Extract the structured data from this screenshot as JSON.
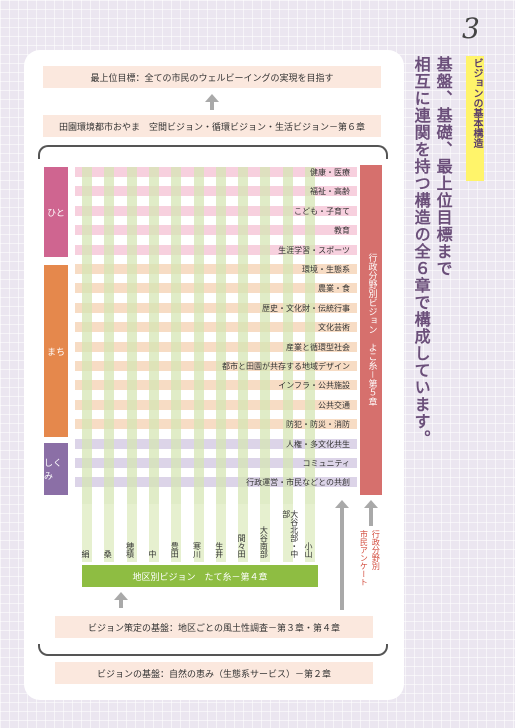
{
  "side": {
    "number": "3",
    "tag": "ビジョンの基本構造",
    "heading_lines": [
      "基盤、基礎、最上位目標まで",
      "相互に連関を持つ構造の全６章で構成しています。"
    ]
  },
  "top_goal": "最上位目標：全ての市民のウェルビーイングの実現を目指す",
  "chapter6": "田園環境都市おやま　空間ビジョン・循環ビジョン・生活ビジョン－第６章",
  "categories": [
    {
      "label": "ひと",
      "color": "#cf6590"
    },
    {
      "label": "まち",
      "color": "#e5884c"
    },
    {
      "label": "しくみ",
      "color": "#8b6fa6"
    }
  ],
  "rows": [
    {
      "label": "健康・医療",
      "color": "#f7d0de"
    },
    {
      "label": "福祉・高齢",
      "color": "#f7d0de"
    },
    {
      "label": "こども・子育て",
      "color": "#f7d0de"
    },
    {
      "label": "教育",
      "color": "#f7d0de"
    },
    {
      "label": "生涯学習・スポーツ",
      "color": "#f7d0de"
    },
    {
      "label": "環境・生態系",
      "color": "#f7dcc4"
    },
    {
      "label": "農業・食",
      "color": "#f7dcc4"
    },
    {
      "label": "歴史・文化財・伝統行事",
      "color": "#f7dcc4"
    },
    {
      "label": "文化芸術",
      "color": "#f7dcc4"
    },
    {
      "label": "産業と循環型社会",
      "color": "#f7dcc4"
    },
    {
      "label": "都市と田園が共存する地域デザイン",
      "color": "#f7dcc4"
    },
    {
      "label": "インフラ・公共施設",
      "color": "#f7dcc4"
    },
    {
      "label": "公共交通",
      "color": "#f7dcc4"
    },
    {
      "label": "防犯・防災・消防",
      "color": "#f7dcc4"
    },
    {
      "label": "人権・多文化共生",
      "color": "#dcd4e8"
    },
    {
      "label": "コミュニティ",
      "color": "#dcd4e8"
    },
    {
      "label": "行政運営・市民などとの共創",
      "color": "#dcd4e8"
    }
  ],
  "districts": [
    "絹",
    "桑",
    "穂積",
    "中",
    "豊田",
    "寒川",
    "生井",
    "間々田",
    "大谷南部",
    "大谷北部・中部",
    "小山"
  ],
  "chapter4_district": "地区別ビジョン　たて糸－第４章",
  "chapter5": "行政分野別ビジョン　よこ糸－第５章",
  "survey_left": "行政分野別",
  "survey_right": "市民アンケート",
  "chapter3_4": "ビジョン策定の基盤：地区ごとの風土性調査－第３章・第４章",
  "chapter2": "ビジョンの基盤：自然の恵み（生態系サービス）－第２章"
}
